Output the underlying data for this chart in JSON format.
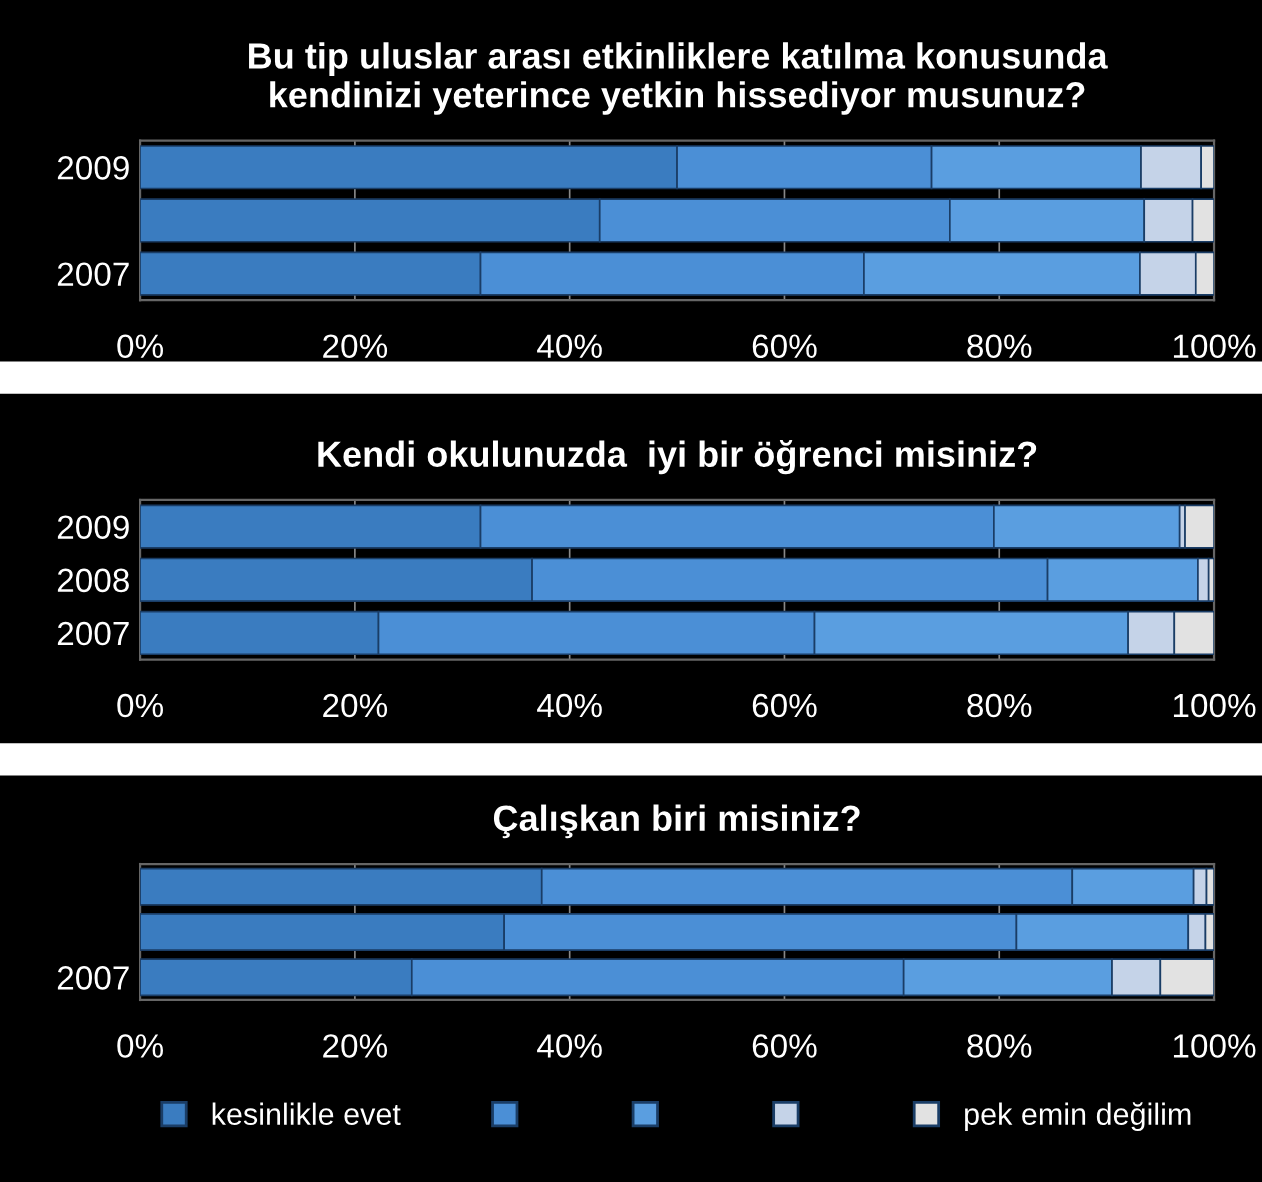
{
  "chart_data": [
    {
      "type": "bar",
      "orientation": "horizontal",
      "stacked": true,
      "title": "Bu tip uluslar arası etkinliklere katılma konusunda\nkendinizi yeterince yetkin hissediyor musunuz?",
      "categories": [
        "2009",
        null,
        "2007"
      ],
      "xlim": [
        0,
        100
      ],
      "xticks": [
        {
          "value": 0,
          "label": "0%"
        },
        {
          "value": 20,
          "label": "20%"
        },
        {
          "value": 40,
          "label": "40%"
        },
        {
          "value": 60,
          "label": "60%"
        },
        {
          "value": 80,
          "label": "80%"
        },
        {
          "value": 100,
          "label": "100%"
        }
      ],
      "grid": "x",
      "series": [
        {
          "color": "#3a7cc0",
          "values": [
            50,
            42.8,
            31.7
          ]
        },
        {
          "color": "#4b8fd6",
          "values": [
            23.7,
            32.6,
            35.7
          ]
        },
        {
          "color": "#5a9ee0",
          "values": [
            19.5,
            18.1,
            25.7
          ]
        },
        {
          "color": "#c5d3e8",
          "values": [
            5.6,
            4.5,
            5.2
          ]
        },
        {
          "color": "#e2e2e2",
          "values": [
            1.2,
            2.0,
            1.7
          ]
        }
      ]
    },
    {
      "type": "bar",
      "orientation": "horizontal",
      "stacked": true,
      "title": "Kendi okulunuzda  iyi bir öğrenci misiniz?",
      "categories": [
        "2009",
        "2008",
        "2007"
      ],
      "xlim": [
        0,
        100
      ],
      "xticks": [
        {
          "value": 0,
          "label": "0%"
        },
        {
          "value": 20,
          "label": "20%"
        },
        {
          "value": 40,
          "label": "40%"
        },
        {
          "value": 60,
          "label": "60%"
        },
        {
          "value": 80,
          "label": "80%"
        },
        {
          "value": 100,
          "label": "100%"
        }
      ],
      "grid": "x",
      "series": [
        {
          "color": "#3a7cc0",
          "values": [
            31.7,
            36.5,
            22.2
          ]
        },
        {
          "color": "#4b8fd6",
          "values": [
            47.8,
            48,
            40.6
          ]
        },
        {
          "color": "#5a9ee0",
          "values": [
            17.3,
            14,
            29.2
          ]
        },
        {
          "color": "#c5d3e8",
          "values": [
            0.5,
            1,
            4.3
          ]
        },
        {
          "color": "#e2e2e2",
          "values": [
            2.7,
            0.5,
            3.7
          ]
        }
      ]
    },
    {
      "type": "bar",
      "orientation": "horizontal",
      "stacked": true,
      "title": "Çalışkan biri misiniz?",
      "categories": [
        null,
        null,
        "2007"
      ],
      "xlim": [
        0,
        100
      ],
      "xticks": [
        {
          "value": 0,
          "label": "0%"
        },
        {
          "value": 20,
          "label": "20%"
        },
        {
          "value": 40,
          "label": "40%"
        },
        {
          "value": 60,
          "label": "60%"
        },
        {
          "value": 80,
          "label": "80%"
        },
        {
          "value": 100,
          "label": "100%"
        }
      ],
      "grid": "x",
      "legend": "bottom",
      "series": [
        {
          "name": "kesinlikle evet",
          "color": "#3a7cc0",
          "values": [
            37.4,
            33.9,
            25.3
          ]
        },
        {
          "color": "#4b8fd6",
          "values": [
            49.4,
            47.7,
            45.8
          ]
        },
        {
          "color": "#5a9ee0",
          "values": [
            11.3,
            16,
            19.4
          ]
        },
        {
          "color": "#c5d3e8",
          "values": [
            1.2,
            1.6,
            4.5
          ]
        },
        {
          "name": "pek emin değilim",
          "color": "#e2e2e2",
          "values": [
            0.7,
            0.8,
            5
          ]
        }
      ]
    }
  ]
}
